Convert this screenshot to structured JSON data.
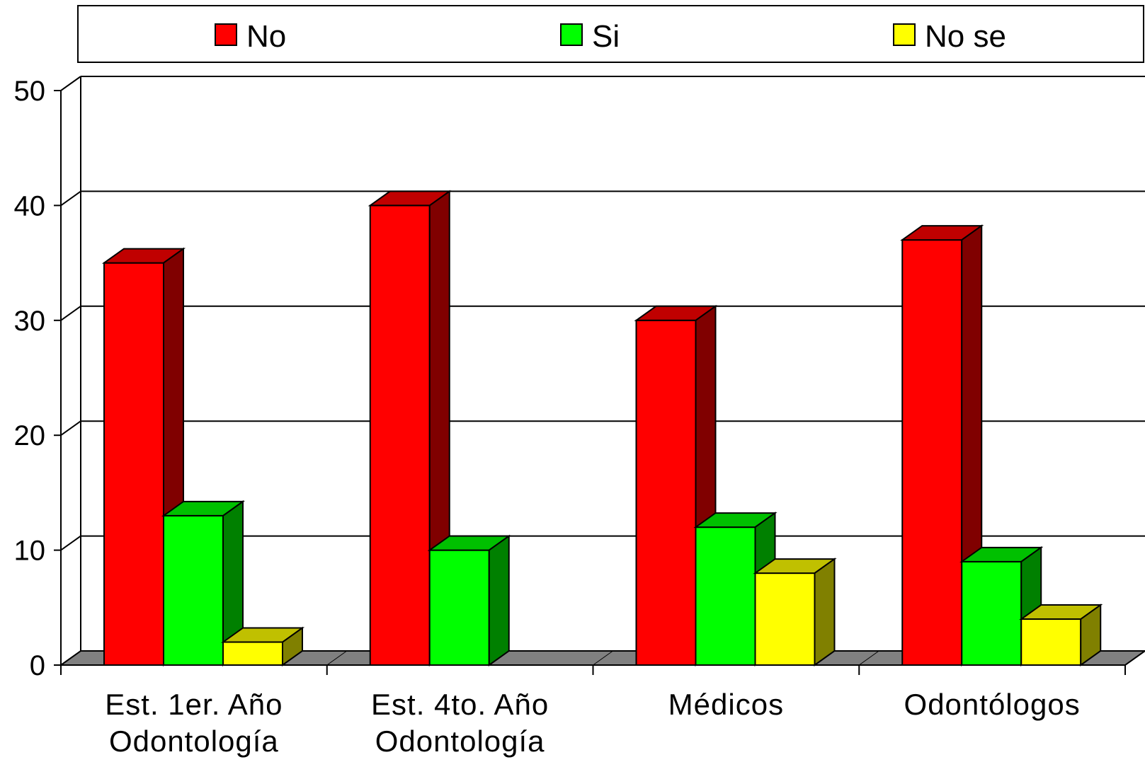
{
  "chart_data": {
    "type": "bar",
    "three_d": true,
    "categories": [
      [
        "Est. 1er. Año",
        "Odontología"
      ],
      [
        "Est. 4to. Año",
        "Odontología"
      ],
      [
        "Médicos"
      ],
      [
        "Odontólogos"
      ]
    ],
    "series": [
      {
        "name": "No",
        "values": [
          35,
          40,
          30,
          37
        ],
        "color": "#ff0000",
        "side_color": "#800000",
        "top_color": "#c00000"
      },
      {
        "name": "Si",
        "values": [
          13,
          10,
          12,
          9
        ],
        "color": "#00ff00",
        "side_color": "#008000",
        "top_color": "#00c000"
      },
      {
        "name": "No se",
        "values": [
          2,
          0,
          8,
          4
        ],
        "color": "#ffff00",
        "side_color": "#808000",
        "top_color": "#c0c000"
      }
    ],
    "yticks": [
      "0",
      "10",
      "20",
      "30",
      "40",
      "50"
    ],
    "ylim": [
      0,
      50
    ],
    "grid": true,
    "legend": "top",
    "floor_color": "#808080"
  }
}
